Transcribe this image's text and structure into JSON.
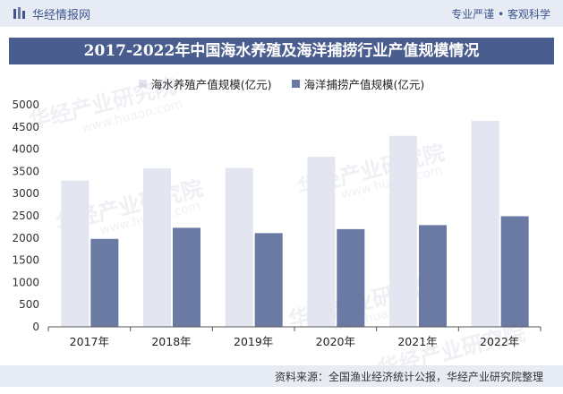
{
  "header": {
    "brand": "华经情报网",
    "slogan": "专业严谨 • 客观科学"
  },
  "title": "2017-2022年中国海水养殖及海洋捕捞行业产值规模情况",
  "watermark": {
    "text": "华经产业研究院",
    "url": "www.huaon.com"
  },
  "footer": {
    "source": "资料来源：全国渔业经济统计公报，华经产业研究院整理"
  },
  "colors": {
    "topbar": "#e6ebf4",
    "titlebar": "#4a5d8f",
    "aquaculture": "#e3e6f1",
    "fishing": "#6b7aa3",
    "brand_text": "#3e548c"
  },
  "chart_data": {
    "type": "bar",
    "categories": [
      "2017年",
      "2018年",
      "2019年",
      "2020年",
      "2021年",
      "2022年"
    ],
    "series": [
      {
        "name": "海水养殖产值规模(亿元)",
        "values": [
          3290,
          3570,
          3580,
          3830,
          4300,
          4640
        ]
      },
      {
        "name": "海洋捕捞产值规模(亿元)",
        "values": [
          1980,
          2230,
          2110,
          2200,
          2290,
          2490
        ]
      }
    ],
    "ylim": [
      0,
      5000
    ],
    "yticks": [
      0,
      500,
      1000,
      1500,
      2000,
      2500,
      3000,
      3500,
      4000,
      4500,
      5000
    ],
    "legend": "top-center",
    "grid": false
  }
}
